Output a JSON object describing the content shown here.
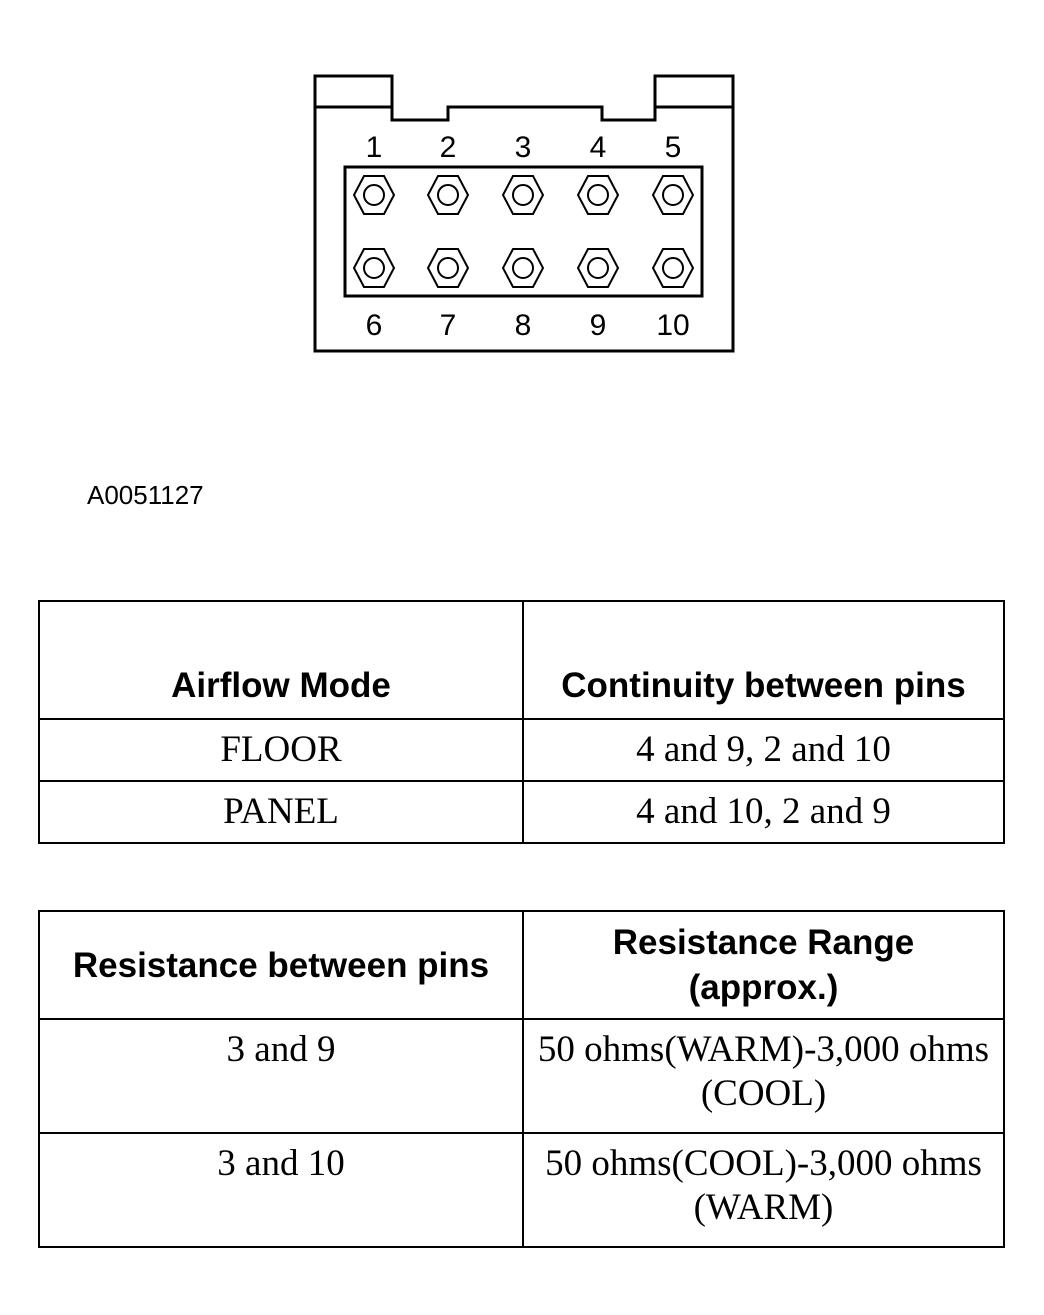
{
  "connector": {
    "top_pins": [
      "1",
      "2",
      "3",
      "4",
      "5"
    ],
    "bottom_pins": [
      "6",
      "7",
      "8",
      "9",
      "10"
    ]
  },
  "figure_id": "A0051127",
  "continuity_table": {
    "headers": [
      "Airflow Mode",
      "Continuity between pins"
    ],
    "rows": [
      [
        "FLOOR",
        "4 and 9, 2 and 10"
      ],
      [
        "PANEL",
        "4 and 10, 2 and 9"
      ]
    ]
  },
  "resistance_table": {
    "headers": [
      "Resistance between pins",
      "Resistance Range (approx.)"
    ],
    "rows": [
      [
        "3 and 9",
        "50 ohms(WARM)-3,000 ohms (COOL)"
      ],
      [
        "3 and 10",
        "50 ohms(COOL)-3,000 ohms (WARM)"
      ]
    ]
  }
}
